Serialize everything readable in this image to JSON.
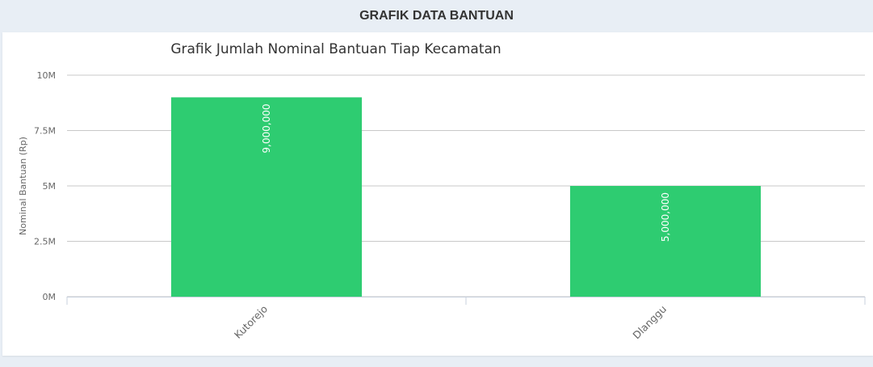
{
  "panel": {
    "title": "GRAFIK DATA BANTUAN"
  },
  "chart_data": {
    "type": "bar",
    "title": "Grafik Jumlah Nominal Bantuan Tiap Kecamatan",
    "xlabel": "",
    "ylabel": "Nominal Bantuan (Rp)",
    "categories": [
      "Kutorejo",
      "Dlanggu"
    ],
    "values": [
      9000000,
      5000000
    ],
    "data_labels": [
      "9,000,000",
      "5,000,000"
    ],
    "ylim": [
      0,
      10000000
    ],
    "yticks": [
      0,
      2500000,
      5000000,
      7500000,
      10000000
    ],
    "ytick_labels": [
      "0M",
      "2.5M",
      "5M",
      "7.5M",
      "10M"
    ],
    "grid": true,
    "legend": "none",
    "colors": {
      "bar": "#2ecc71",
      "grid": "#c8c8c8",
      "axis": "#c8d0dc"
    }
  }
}
